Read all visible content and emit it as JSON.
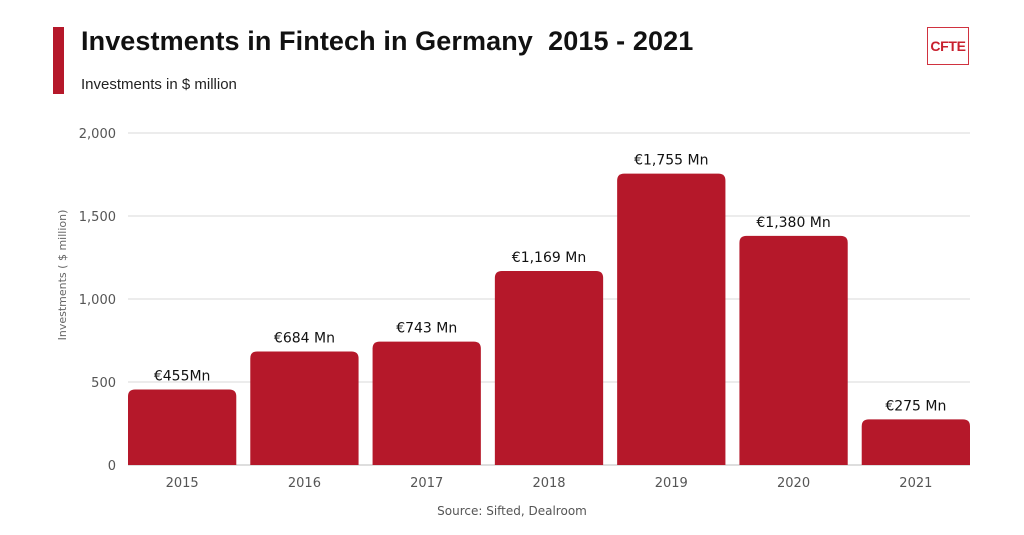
{
  "header": {
    "title": "Investments in Fintech in Germany  2015 - 2021",
    "subtitle": "Investments in $ million",
    "logo_text": "CFTE"
  },
  "colors": {
    "bar": "#b5182a",
    "accent": "#b5182a",
    "grid": "#d9d9d9",
    "logo": "#c8202e"
  },
  "footer": {
    "source": "Source: Sifted, Dealroom"
  },
  "chart_data": {
    "type": "bar",
    "title": "Investments in Fintech in Germany  2015 - 2021",
    "subtitle": "Investments in $ million",
    "xlabel": "",
    "ylabel": "Investments ( $ million)",
    "categories": [
      "2015",
      "2016",
      "2017",
      "2018",
      "2019",
      "2020",
      "2021"
    ],
    "values": [
      455,
      684,
      743,
      1169,
      1755,
      1380,
      275
    ],
    "data_labels": [
      "€455Mn",
      "€684 Mn",
      "€743 Mn",
      "€1,169 Mn",
      "€1,755 Mn",
      "€1,380 Mn",
      "€275 Mn"
    ],
    "ylim": [
      0,
      2000
    ],
    "yticks": [
      0,
      500,
      1000,
      1500,
      2000
    ],
    "ytick_labels": [
      "0",
      "500",
      "1,000",
      "1,500",
      "2,000"
    ],
    "grid": true,
    "legend": "none",
    "source": "Source: Sifted, Dealroom"
  }
}
